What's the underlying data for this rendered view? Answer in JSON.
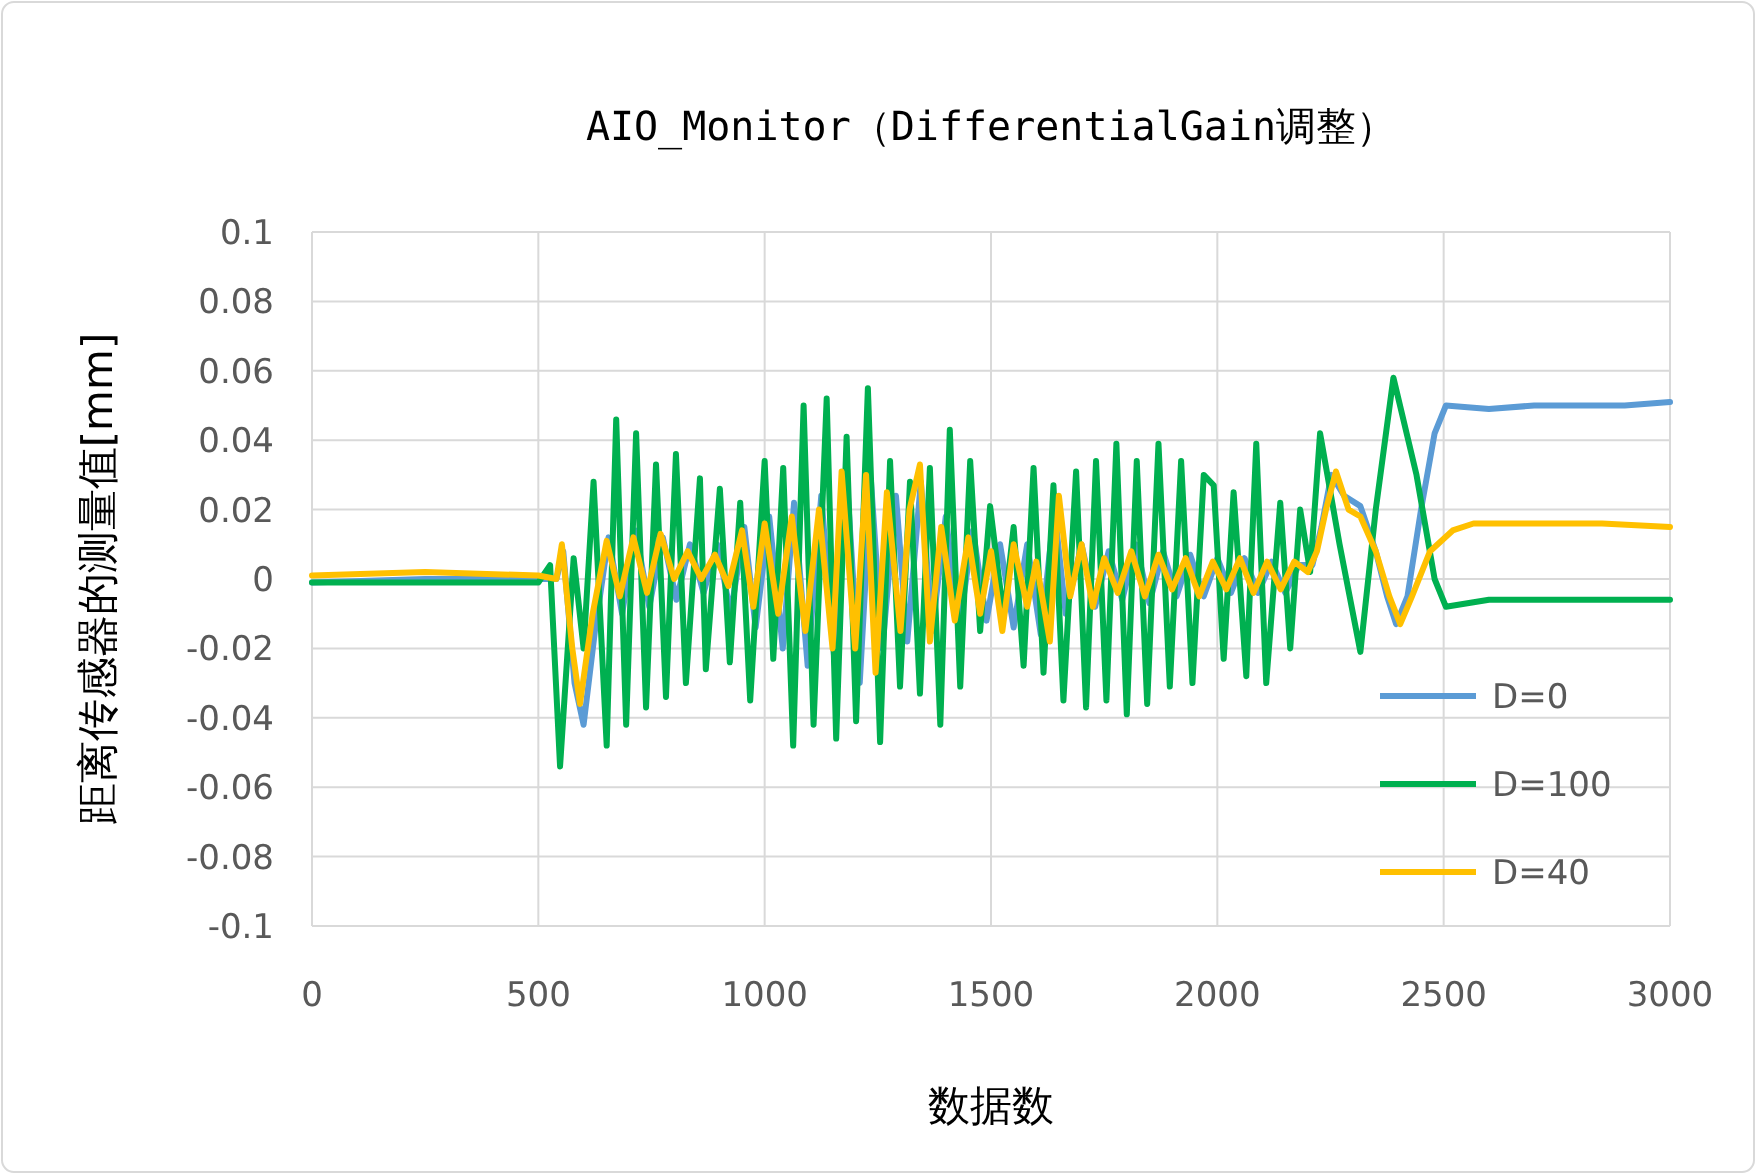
{
  "chart_data": {
    "type": "line",
    "title": "AIO_Monitor（DifferentialGain调整）",
    "xlabel": "数据数",
    "ylabel": "距离传感器的测量值[mm]",
    "xlim": [
      0,
      3000
    ],
    "xticks": [
      0,
      500,
      1000,
      1500,
      2000,
      2500,
      3000
    ],
    "ylim": [
      -0.1,
      0.1
    ],
    "yticks": [
      -0.1,
      -0.08,
      -0.06,
      -0.04,
      -0.02,
      0,
      0.02,
      0.04,
      0.06,
      0.08,
      0.1
    ],
    "grid": true,
    "legend": "right",
    "line_style": "solid",
    "marker": "none",
    "series": [
      {
        "name": "D=0",
        "color": "#5b9bd5",
        "x": [
          0,
          250,
          500,
          540,
          555,
          580,
          600,
          625,
          655,
          685,
          715,
          745,
          775,
          805,
          835,
          865,
          895,
          925,
          955,
          980,
          1010,
          1040,
          1065,
          1095,
          1125,
          1155,
          1180,
          1210,
          1235,
          1260,
          1290,
          1315,
          1345,
          1370,
          1400,
          1430,
          1460,
          1490,
          1520,
          1550,
          1580,
          1610,
          1640,
          1665,
          1700,
          1730,
          1760,
          1790,
          1820,
          1850,
          1880,
          1910,
          1940,
          1970,
          2000,
          2030,
          2060,
          2090,
          2120,
          2150,
          2180,
          2210,
          2230,
          2252,
          2280,
          2316,
          2350,
          2375,
          2395,
          2420,
          2450,
          2480,
          2505,
          2600,
          2700,
          2800,
          2900,
          3000
        ],
        "values": [
          -0.001,
          0.0,
          0.0,
          0.0,
          0.008,
          -0.03,
          -0.042,
          -0.015,
          0.012,
          -0.01,
          0.014,
          -0.008,
          0.012,
          -0.006,
          0.01,
          -0.004,
          0.01,
          -0.01,
          0.015,
          -0.014,
          0.018,
          -0.02,
          0.022,
          -0.025,
          0.024,
          -0.025,
          0.032,
          -0.03,
          0.028,
          -0.02,
          0.024,
          -0.018,
          0.028,
          -0.015,
          0.018,
          -0.014,
          0.014,
          -0.012,
          0.01,
          -0.014,
          0.01,
          -0.016,
          0.02,
          -0.01,
          0.01,
          -0.008,
          0.008,
          -0.006,
          0.01,
          -0.007,
          0.008,
          -0.005,
          0.007,
          -0.005,
          0.006,
          -0.004,
          0.006,
          -0.004,
          0.005,
          -0.004,
          0.004,
          0.004,
          0.015,
          0.03,
          0.024,
          0.021,
          0.008,
          -0.005,
          -0.013,
          -0.005,
          0.02,
          0.042,
          0.05,
          0.049,
          0.05,
          0.05,
          0.05,
          0.051
        ]
      },
      {
        "name": "D=100",
        "color": "#00b050",
        "x": [
          0,
          250,
          500,
          526,
          548,
          578,
          600,
          622,
          651,
          672,
          694,
          716,
          738,
          760,
          782,
          804,
          826,
          857,
          870,
          901,
          923,
          946,
          968,
          1000,
          1019,
          1041,
          1063,
          1086,
          1108,
          1137,
          1158,
          1181,
          1202,
          1228,
          1255,
          1277,
          1299,
          1321,
          1343,
          1365,
          1388,
          1409,
          1432,
          1454,
          1476,
          1498,
          1528,
          1550,
          1572,
          1594,
          1616,
          1638,
          1660,
          1688,
          1710,
          1732,
          1755,
          1777,
          1800,
          1822,
          1845,
          1870,
          1895,
          1920,
          1945,
          1970,
          1992,
          2014,
          2036,
          2064,
          2086,
          2108,
          2139,
          2161,
          2183,
          2205,
          2227,
          2270,
          2316,
          2350,
          2389,
          2440,
          2480,
          2505,
          2600,
          2700,
          2800,
          3000
        ],
        "values": [
          -0.001,
          -0.001,
          -0.001,
          0.004,
          -0.054,
          0.006,
          -0.02,
          0.028,
          -0.048,
          0.046,
          -0.042,
          0.042,
          -0.037,
          0.033,
          -0.034,
          0.036,
          -0.03,
          0.029,
          -0.026,
          0.026,
          -0.024,
          0.022,
          -0.035,
          0.034,
          -0.023,
          0.032,
          -0.048,
          0.05,
          -0.042,
          0.052,
          -0.046,
          0.041,
          -0.041,
          0.055,
          -0.047,
          0.034,
          -0.031,
          0.028,
          -0.033,
          0.032,
          -0.042,
          0.043,
          -0.031,
          0.034,
          -0.015,
          0.021,
          -0.011,
          0.015,
          -0.025,
          0.032,
          -0.027,
          0.027,
          -0.035,
          0.031,
          -0.037,
          0.034,
          -0.035,
          0.039,
          -0.039,
          0.034,
          -0.036,
          0.039,
          -0.031,
          0.034,
          -0.03,
          0.03,
          0.027,
          -0.023,
          0.025,
          -0.028,
          0.039,
          -0.03,
          0.022,
          -0.02,
          0.02,
          0.002,
          0.042,
          0.01,
          -0.021,
          0.02,
          0.058,
          0.03,
          0.0,
          -0.008,
          -0.006,
          -0.006,
          -0.006,
          -0.006
        ]
      },
      {
        "name": "D=40",
        "color": "#ffc000",
        "x": [
          0,
          250,
          500,
          540,
          552,
          575,
          592,
          620,
          651,
          680,
          710,
          740,
          770,
          800,
          830,
          860,
          890,
          920,
          950,
          975,
          1000,
          1030,
          1060,
          1090,
          1120,
          1150,
          1170,
          1200,
          1224,
          1245,
          1270,
          1300,
          1320,
          1343,
          1365,
          1390,
          1420,
          1450,
          1476,
          1500,
          1525,
          1550,
          1580,
          1600,
          1630,
          1650,
          1675,
          1700,
          1725,
          1750,
          1780,
          1810,
          1840,
          1870,
          1900,
          1930,
          1960,
          1990,
          2020,
          2050,
          2080,
          2110,
          2140,
          2170,
          2200,
          2220,
          2240,
          2262,
          2290,
          2316,
          2350,
          2380,
          2404,
          2430,
          2470,
          2520,
          2566,
          2700,
          2850,
          3000
        ],
        "values": [
          0.001,
          0.002,
          0.001,
          0.0,
          0.01,
          -0.02,
          -0.036,
          -0.01,
          0.011,
          -0.005,
          0.012,
          -0.004,
          0.013,
          0.0,
          0.008,
          0.0,
          0.007,
          -0.002,
          0.014,
          -0.008,
          0.016,
          -0.01,
          0.018,
          -0.015,
          0.02,
          -0.02,
          0.031,
          -0.02,
          0.03,
          -0.027,
          0.025,
          -0.015,
          0.02,
          0.033,
          -0.018,
          0.015,
          -0.012,
          0.012,
          -0.01,
          0.008,
          -0.015,
          0.01,
          -0.008,
          0.005,
          -0.018,
          0.024,
          -0.005,
          0.01,
          -0.008,
          0.006,
          -0.004,
          0.008,
          -0.005,
          0.007,
          -0.003,
          0.006,
          -0.005,
          0.005,
          -0.003,
          0.006,
          -0.004,
          0.005,
          -0.003,
          0.005,
          0.002,
          0.008,
          0.02,
          0.031,
          0.02,
          0.018,
          0.008,
          -0.005,
          -0.013,
          -0.005,
          0.008,
          0.014,
          0.016,
          0.016,
          0.016,
          0.015
        ]
      }
    ]
  }
}
